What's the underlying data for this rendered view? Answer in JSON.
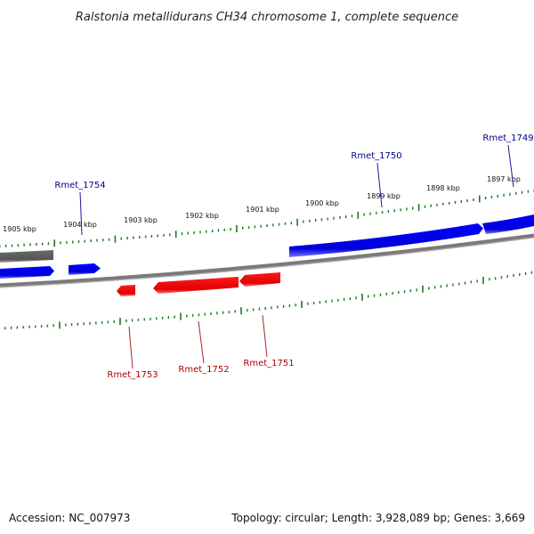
{
  "title": "Ralstonia metallidurans CH34 chromosome 1, complete sequence",
  "accession": "Accession: NC_007973",
  "summary": "Topology: circular; Length: 3,928,089 bp; Genes: 3,669",
  "colors": {
    "forward_gene": "#0000ee",
    "reverse_gene": "#ee0000",
    "backbone": "#808080",
    "ticks": "#1a7a1a",
    "forward_label": "#00008b",
    "reverse_label": "#b00000"
  },
  "scale_labels": [
    "1905 kbp",
    "1904 kbp",
    "1903 kbp",
    "1902 kbp",
    "1901 kbp",
    "1900 kbp",
    "1899 kbp",
    "1898 kbp",
    "1897 kbp"
  ],
  "genes_forward": [
    "Rmet_1754",
    "Rmet_1750",
    "Rmet_1749"
  ],
  "genes_reverse": [
    "Rmet_1753",
    "Rmet_1752",
    "Rmet_1751"
  ]
}
